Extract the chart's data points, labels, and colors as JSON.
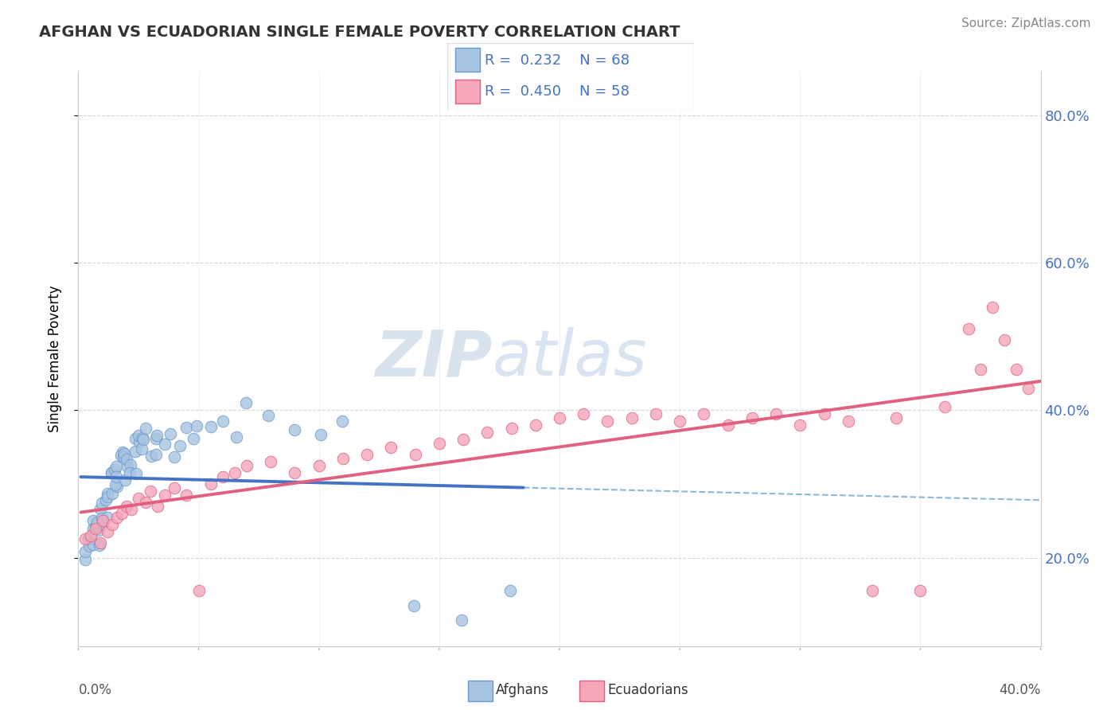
{
  "title": "AFGHAN VS ECUADORIAN SINGLE FEMALE POVERTY CORRELATION CHART",
  "source": "Source: ZipAtlas.com",
  "ylabel": "Single Female Poverty",
  "legend_afghans": "Afghans",
  "legend_ecuadorians": "Ecuadorians",
  "afghan_R": 0.232,
  "afghan_N": 68,
  "ecuadorian_R": 0.45,
  "ecuadorian_N": 58,
  "watermark_zip": "ZIP",
  "watermark_atlas": "atlas",
  "afghan_fill": "#a8c4e0",
  "afghan_edge": "#6699cc",
  "ecuadorian_fill": "#f4a7b9",
  "ecuadorian_edge": "#e06080",
  "afghan_line_color": "#4472c4",
  "ecuadorian_line_color": "#e06080",
  "dashed_line_color": "#7eb0d4",
  "xlim": [
    0.0,
    0.4
  ],
  "ylim": [
    0.08,
    0.86
  ],
  "yticks": [
    0.2,
    0.4,
    0.6,
    0.8
  ],
  "ytick_labels": [
    "20.0%",
    "40.0%",
    "60.0%",
    "80.0%"
  ],
  "title_fontsize": 14,
  "source_fontsize": 11,
  "background_color": "#ffffff",
  "grid_color": "#cccccc",
  "afghans_x": [
    0.002,
    0.003,
    0.004,
    0.005,
    0.005,
    0.006,
    0.006,
    0.007,
    0.007,
    0.008,
    0.008,
    0.009,
    0.009,
    0.01,
    0.01,
    0.011,
    0.011,
    0.012,
    0.012,
    0.013,
    0.013,
    0.014,
    0.014,
    0.015,
    0.015,
    0.016,
    0.016,
    0.017,
    0.018,
    0.018,
    0.019,
    0.019,
    0.02,
    0.02,
    0.021,
    0.022,
    0.022,
    0.023,
    0.023,
    0.024,
    0.025,
    0.025,
    0.026,
    0.027,
    0.028,
    0.029,
    0.03,
    0.031,
    0.032,
    0.033,
    0.035,
    0.038,
    0.04,
    0.042,
    0.045,
    0.048,
    0.05,
    0.055,
    0.06,
    0.065,
    0.07,
    0.08,
    0.09,
    0.1,
    0.11,
    0.14,
    0.16,
    0.18
  ],
  "afghans_y": [
    0.2,
    0.22,
    0.21,
    0.23,
    0.215,
    0.225,
    0.235,
    0.22,
    0.24,
    0.23,
    0.25,
    0.235,
    0.26,
    0.245,
    0.27,
    0.255,
    0.28,
    0.26,
    0.29,
    0.27,
    0.3,
    0.28,
    0.31,
    0.29,
    0.32,
    0.3,
    0.33,
    0.31,
    0.32,
    0.33,
    0.34,
    0.31,
    0.35,
    0.32,
    0.33,
    0.34,
    0.31,
    0.35,
    0.3,
    0.36,
    0.34,
    0.37,
    0.35,
    0.36,
    0.35,
    0.37,
    0.35,
    0.36,
    0.34,
    0.37,
    0.36,
    0.35,
    0.34,
    0.36,
    0.37,
    0.36,
    0.38,
    0.37,
    0.38,
    0.36,
    0.4,
    0.39,
    0.38,
    0.37,
    0.39,
    0.14,
    0.135,
    0.155
  ],
  "ecuadorians_x": [
    0.003,
    0.005,
    0.007,
    0.009,
    0.01,
    0.012,
    0.014,
    0.016,
    0.018,
    0.02,
    0.022,
    0.025,
    0.028,
    0.03,
    0.033,
    0.036,
    0.04,
    0.045,
    0.05,
    0.055,
    0.06,
    0.065,
    0.07,
    0.08,
    0.09,
    0.1,
    0.11,
    0.12,
    0.13,
    0.14,
    0.15,
    0.16,
    0.17,
    0.18,
    0.19,
    0.2,
    0.21,
    0.22,
    0.23,
    0.24,
    0.25,
    0.26,
    0.27,
    0.28,
    0.29,
    0.3,
    0.31,
    0.32,
    0.33,
    0.34,
    0.35,
    0.36,
    0.37,
    0.38,
    0.39,
    0.395,
    0.385,
    0.375
  ],
  "ecuadorians_y": [
    0.225,
    0.23,
    0.24,
    0.22,
    0.25,
    0.235,
    0.245,
    0.255,
    0.26,
    0.27,
    0.265,
    0.28,
    0.275,
    0.29,
    0.27,
    0.285,
    0.295,
    0.285,
    0.155,
    0.3,
    0.31,
    0.315,
    0.325,
    0.33,
    0.315,
    0.325,
    0.335,
    0.34,
    0.35,
    0.34,
    0.355,
    0.36,
    0.37,
    0.375,
    0.38,
    0.39,
    0.395,
    0.385,
    0.39,
    0.395,
    0.385,
    0.395,
    0.38,
    0.39,
    0.395,
    0.38,
    0.395,
    0.385,
    0.155,
    0.39,
    0.155,
    0.405,
    0.51,
    0.54,
    0.455,
    0.43,
    0.495,
    0.455
  ]
}
